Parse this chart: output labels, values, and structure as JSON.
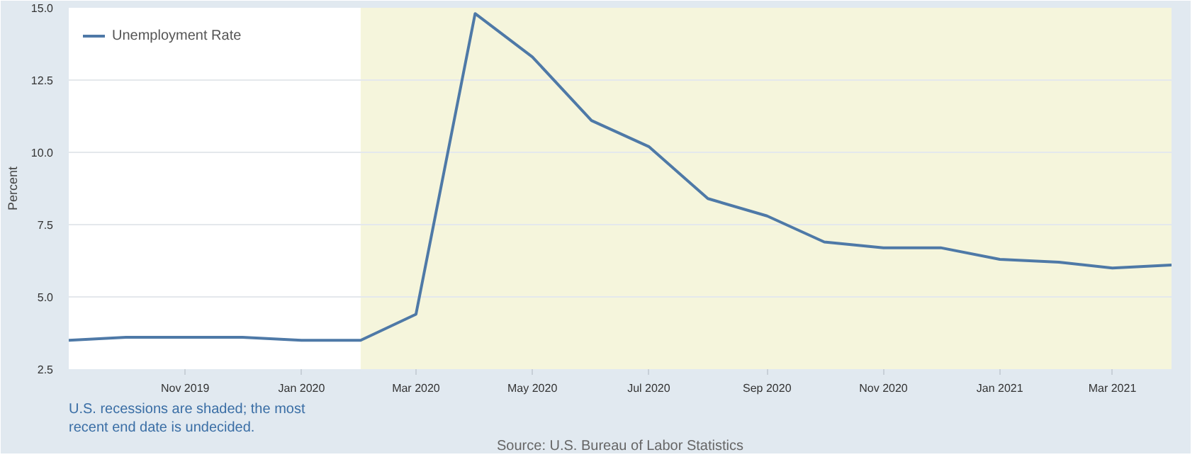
{
  "chart_data": {
    "type": "line",
    "ylabel": "Percent",
    "x": [
      "2019-09",
      "2019-10",
      "2019-11",
      "2019-12",
      "2020-01",
      "2020-02",
      "2020-03",
      "2020-04",
      "2020-05",
      "2020-06",
      "2020-07",
      "2020-08",
      "2020-09",
      "2020-10",
      "2020-11",
      "2020-12",
      "2021-01",
      "2021-02",
      "2021-03",
      "2021-04"
    ],
    "series": [
      {
        "name": "Unemployment Rate",
        "color": "#4e79a7",
        "values": [
          3.5,
          3.6,
          3.6,
          3.6,
          3.5,
          3.5,
          4.4,
          14.8,
          13.3,
          11.1,
          10.2,
          8.4,
          7.8,
          6.9,
          6.7,
          6.7,
          6.3,
          6.2,
          6.0,
          6.1
        ]
      }
    ],
    "xlim": [
      "2019-09",
      "2021-04"
    ],
    "xticks": [
      {
        "value": "2019-11",
        "label": "Nov 2019"
      },
      {
        "value": "2020-01",
        "label": "Jan 2020"
      },
      {
        "value": "2020-03",
        "label": "Mar 2020"
      },
      {
        "value": "2020-05",
        "label": "May 2020"
      },
      {
        "value": "2020-07",
        "label": "Jul 2020"
      },
      {
        "value": "2020-09",
        "label": "Sep 2020"
      },
      {
        "value": "2020-11",
        "label": "Nov 2020"
      },
      {
        "value": "2021-01",
        "label": "Jan 2021"
      },
      {
        "value": "2021-03",
        "label": "Mar 2021"
      }
    ],
    "ylim": [
      2.5,
      15.0
    ],
    "yticks": [
      {
        "value": 2.5,
        "label": "2.5"
      },
      {
        "value": 5,
        "label": "5.0"
      },
      {
        "value": 7.5,
        "label": "7.5"
      },
      {
        "value": 10,
        "label": "10.0"
      },
      {
        "value": 12.5,
        "label": "12.5"
      },
      {
        "value": 15,
        "label": "15.0"
      }
    ],
    "bands": [
      {
        "axis": "x",
        "from": "2020-02",
        "to": "2021-04",
        "color": "#f5f5dc"
      }
    ],
    "grid": "y",
    "legend": "top left",
    "marker": "none",
    "line_style": "solid",
    "annotations": [
      "U.S. recessions are shaded; the most recent end date is undecided.",
      "Source: U.S. Bureau of Labor Statistics"
    ]
  }
}
